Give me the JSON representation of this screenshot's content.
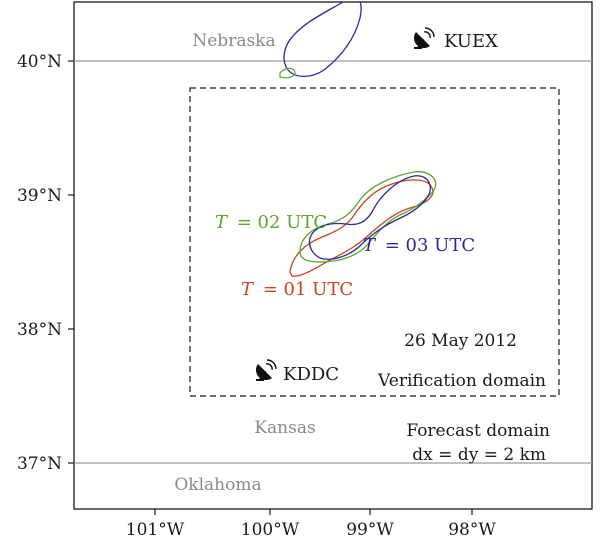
{
  "map": {
    "date": "26 May 2012",
    "verification_domain_label": "Verification domain",
    "forecast_domain_label": "Forecast domain",
    "grid_spacing_label": "dx = dy = 2 km",
    "states": {
      "north": "Nebraska",
      "middle": "Kansas",
      "south": "Oklahoma"
    },
    "radars": [
      {
        "id": "kuex",
        "label": "KUEX",
        "icon": "radar-dish-icon"
      },
      {
        "id": "kddc",
        "label": "KDDC",
        "icon": "radar-dish-icon"
      }
    ],
    "latitude_ticks": [
      "40°N",
      "39°N",
      "38°N",
      "37°N"
    ],
    "longitude_ticks": [
      "101°W",
      "100°W",
      "99°W",
      "98°W"
    ],
    "storm_contours": [
      {
        "time_var": "T",
        "time_value": "= 01 UTC",
        "color": "#c8441e"
      },
      {
        "time_var": "T",
        "time_value": "= 02 UTC",
        "color": "#5aa62e"
      },
      {
        "time_var": "T",
        "time_value": "= 03 UTC",
        "color": "#2a2a9c"
      }
    ],
    "colors": {
      "state_border": "#9a9a9a",
      "frame": "#1a1a1a",
      "radar_icon": "#111111"
    }
  }
}
